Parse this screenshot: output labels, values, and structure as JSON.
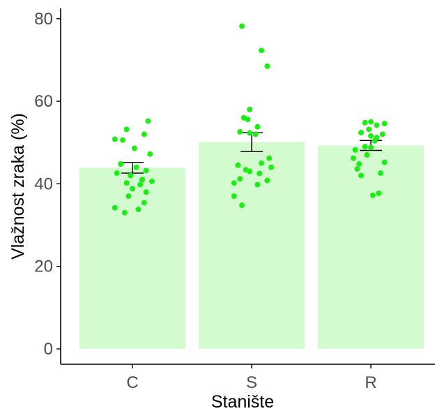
{
  "chart_data": {
    "type": "bar",
    "xlabel": "Stanište",
    "ylabel": "Vlažnost zraka (%)",
    "ylim": [
      0,
      82
    ],
    "yticks": [
      0,
      20,
      40,
      60,
      80
    ],
    "categories": [
      "C",
      "S",
      "R"
    ],
    "values": [
      43.9,
      50.1,
      49.3
    ],
    "error_bars": [
      {
        "low": 42.6,
        "high": 45.2
      },
      {
        "low": 47.8,
        "high": 52.4
      },
      {
        "low": 48.1,
        "high": 50.5
      }
    ],
    "points": [
      [
        55.2,
        53.2,
        52.0,
        50.8,
        50.6,
        48.6,
        47.2,
        44.8,
        44.0,
        43.2,
        42.6,
        42.0,
        41.0,
        40.6,
        40.2,
        39.8,
        38.8,
        38.0,
        37.0,
        35.4,
        34.2,
        33.8,
        33.0
      ],
      [
        78.2,
        72.3,
        68.5,
        58.0,
        56.0,
        55.6,
        53.8,
        52.6,
        52.3,
        52.0,
        46.2,
        45.0,
        44.5,
        44.0,
        43.4,
        43.0,
        42.5,
        41.2,
        40.8,
        40.2,
        39.8,
        37.0,
        34.8
      ],
      [
        55.0,
        54.8,
        54.6,
        54.2,
        53.2,
        52.4,
        52.0,
        51.6,
        51.2,
        50.4,
        49.0,
        48.8,
        48.2,
        47.0,
        46.2,
        45.2,
        44.8,
        43.6,
        42.6,
        42.0,
        37.7,
        37.2
      ]
    ],
    "colors": {
      "bar_fill": "#d4fad0",
      "point": "#1ded15",
      "error_bar": "#000000",
      "axis": "#000000",
      "tick_label": "#4d4d4d"
    },
    "grid": false,
    "legend": "none"
  }
}
